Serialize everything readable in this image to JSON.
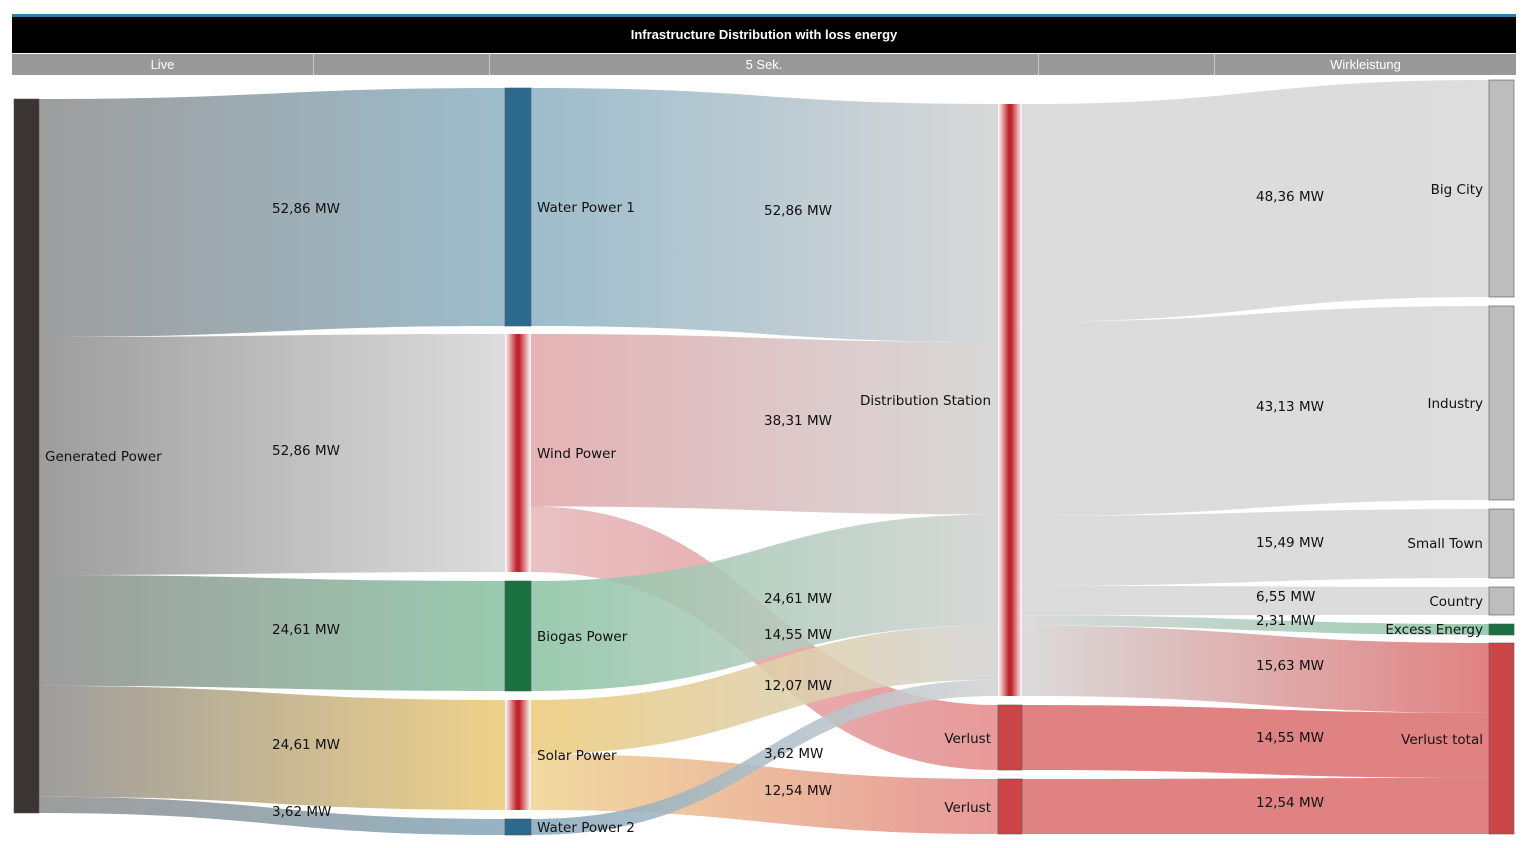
{
  "chart_data": {
    "type": "sankey",
    "title": "Infrastructure Distribution with loss energy",
    "header": {
      "cells": [
        {
          "label": "Live"
        },
        {
          "label": ""
        },
        {
          "label": "5 Sek."
        },
        {
          "label": ""
        },
        {
          "label": "Wirkleistung"
        }
      ]
    },
    "units": "MW",
    "nodes": [
      {
        "id": "gen",
        "name": "Generated Power",
        "color": "#3a3434",
        "column": 0
      },
      {
        "id": "water1",
        "name": "Water Power 1",
        "color": "#2b6a8c",
        "column": 1
      },
      {
        "id": "wind",
        "name": "Wind Power",
        "color": "#c0232a",
        "column": 1,
        "style": "gradient"
      },
      {
        "id": "biogas",
        "name": "Biogas Power",
        "color": "#1a7040",
        "column": 1
      },
      {
        "id": "solar",
        "name": "Solar Power",
        "color": "#c0232a",
        "column": 1,
        "style": "gradient"
      },
      {
        "id": "water2",
        "name": "Water Power 2",
        "color": "#2b6a8c",
        "column": 1
      },
      {
        "id": "dist",
        "name": "Distribution Station",
        "color": "#c0232a",
        "column": 2,
        "style": "gradient"
      },
      {
        "id": "verlust1",
        "name": "Verlust",
        "color": "#cc4648",
        "column": 2
      },
      {
        "id": "verlust2",
        "name": "Verlust",
        "color": "#cc4648",
        "column": 2
      },
      {
        "id": "bigcity",
        "name": "Big City",
        "color": "#bdbdbd",
        "column": 3
      },
      {
        "id": "industry",
        "name": "Industry",
        "color": "#bdbdbd",
        "column": 3
      },
      {
        "id": "smalltown",
        "name": "Small Town",
        "color": "#bdbdbd",
        "column": 3
      },
      {
        "id": "country",
        "name": "Country",
        "color": "#bdbdbd",
        "column": 3
      },
      {
        "id": "excess",
        "name": "Excess Energy",
        "color": "#1a7040",
        "column": 3
      },
      {
        "id": "verlusttotal",
        "name": "Verlust total",
        "color": "#cc4648",
        "column": 3
      }
    ],
    "links": [
      {
        "source": "gen",
        "target": "water1",
        "value": 52.86,
        "label": "52,86 MW"
      },
      {
        "source": "gen",
        "target": "wind",
        "value": 52.86,
        "label": "52,86 MW"
      },
      {
        "source": "gen",
        "target": "biogas",
        "value": 24.61,
        "label": "24,61 MW"
      },
      {
        "source": "gen",
        "target": "solar",
        "value": 24.61,
        "label": "24,61 MW"
      },
      {
        "source": "gen",
        "target": "water2",
        "value": 3.62,
        "label": "3,62 MW"
      },
      {
        "source": "water1",
        "target": "dist",
        "value": 52.86,
        "label": "52,86 MW"
      },
      {
        "source": "wind",
        "target": "dist",
        "value": 38.31,
        "label": "38,31 MW"
      },
      {
        "source": "wind",
        "target": "verlust1",
        "value": 14.55,
        "label": "14,55 MW"
      },
      {
        "source": "biogas",
        "target": "dist",
        "value": 24.61,
        "label": "24,61 MW"
      },
      {
        "source": "solar",
        "target": "dist",
        "value": 12.07,
        "label": "12,07 MW"
      },
      {
        "source": "solar",
        "target": "verlust2",
        "value": 12.54,
        "label": "12,54 MW"
      },
      {
        "source": "water2",
        "target": "dist",
        "value": 3.62,
        "label": "3,62 MW"
      },
      {
        "source": "dist",
        "target": "bigcity",
        "value": 48.36,
        "label": "48,36 MW"
      },
      {
        "source": "dist",
        "target": "industry",
        "value": 43.13,
        "label": "43,13 MW"
      },
      {
        "source": "dist",
        "target": "smalltown",
        "value": 15.49,
        "label": "15,49 MW"
      },
      {
        "source": "dist",
        "target": "country",
        "value": 6.55,
        "label": "6,55 MW"
      },
      {
        "source": "dist",
        "target": "excess",
        "value": 2.31,
        "label": "2,31 MW"
      },
      {
        "source": "dist",
        "target": "verlusttotal",
        "value": 15.63,
        "label": "15,63 MW"
      },
      {
        "source": "verlust1",
        "target": "verlusttotal",
        "value": 14.55,
        "label": "14,55 MW"
      },
      {
        "source": "verlust2",
        "target": "verlusttotal",
        "value": 12.54,
        "label": "12,54 MW"
      }
    ]
  }
}
